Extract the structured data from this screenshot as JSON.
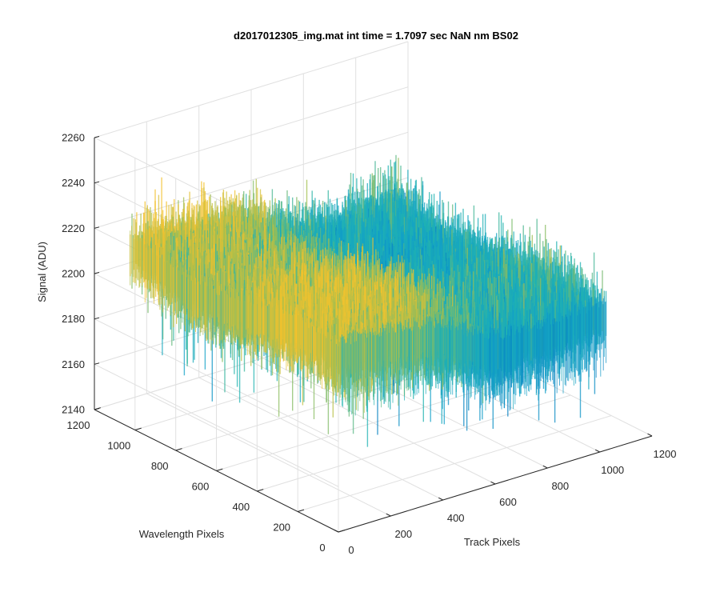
{
  "chart_data": {
    "type": "surface",
    "title": "d2017012305_img.mat int time = 1.7097 sec  NaN nm BS02",
    "xlabel": "Track Pixels",
    "ylabel": "Wavelength Pixels",
    "zlabel": "Signal (ADU)",
    "xlim": [
      0,
      1200
    ],
    "ylim": [
      0,
      1200
    ],
    "zlim": [
      2140,
      2260
    ],
    "x_ticks": [
      "0",
      "200",
      "400",
      "600",
      "800",
      "1000",
      "1200"
    ],
    "y_ticks": [
      "0",
      "200",
      "400",
      "600",
      "800",
      "1000",
      "1200"
    ],
    "z_ticks": [
      "2140",
      "2160",
      "2180",
      "2200",
      "2220",
      "2240",
      "2260"
    ],
    "grid": true,
    "colormap": "parula",
    "surface_range": {
      "track_pixels": [
        0,
        1024
      ],
      "wavelength_pixels": [
        0,
        1024
      ]
    },
    "signal": {
      "mean": 2200,
      "min_approx": 2150,
      "max_approx": 2245,
      "high_region_track_pixels": [
        0,
        500
      ],
      "high_region_level": 2213,
      "low_region_level": 2197
    },
    "colors": {
      "low": "#0072BD",
      "mid": "#21B3B0",
      "high": "#F2C12E",
      "grid": "#E0E0E0",
      "axis": "#262626"
    }
  }
}
